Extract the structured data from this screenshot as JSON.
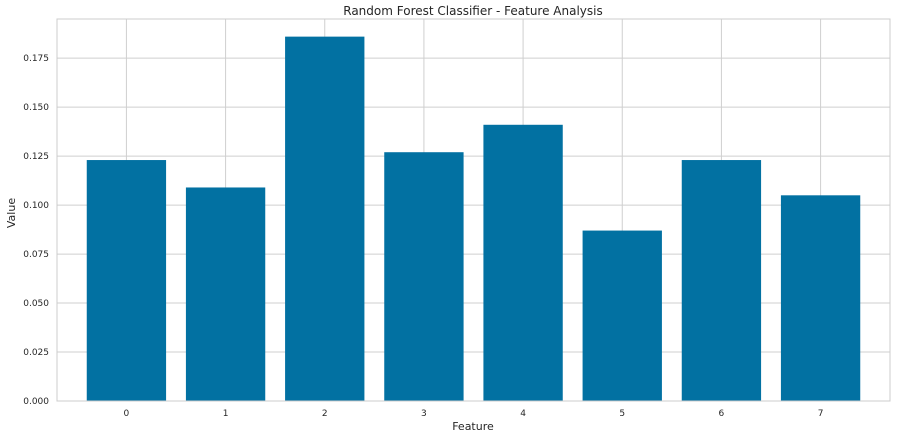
{
  "chart_data": {
    "type": "bar",
    "title": "Random Forest Classifier - Feature Analysis",
    "xlabel": "Feature",
    "ylabel": "Value",
    "categories": [
      "0",
      "1",
      "2",
      "3",
      "4",
      "5",
      "6",
      "7"
    ],
    "values": [
      0.123,
      0.109,
      0.186,
      0.127,
      0.141,
      0.087,
      0.123,
      0.105
    ],
    "ylim": [
      0,
      0.195
    ],
    "yticks": [
      "0.000",
      "0.025",
      "0.050",
      "0.075",
      "0.100",
      "0.125",
      "0.150",
      "0.175"
    ],
    "grid": true,
    "bar_color": "#0271a2",
    "grid_color": "#cfcfcf"
  }
}
